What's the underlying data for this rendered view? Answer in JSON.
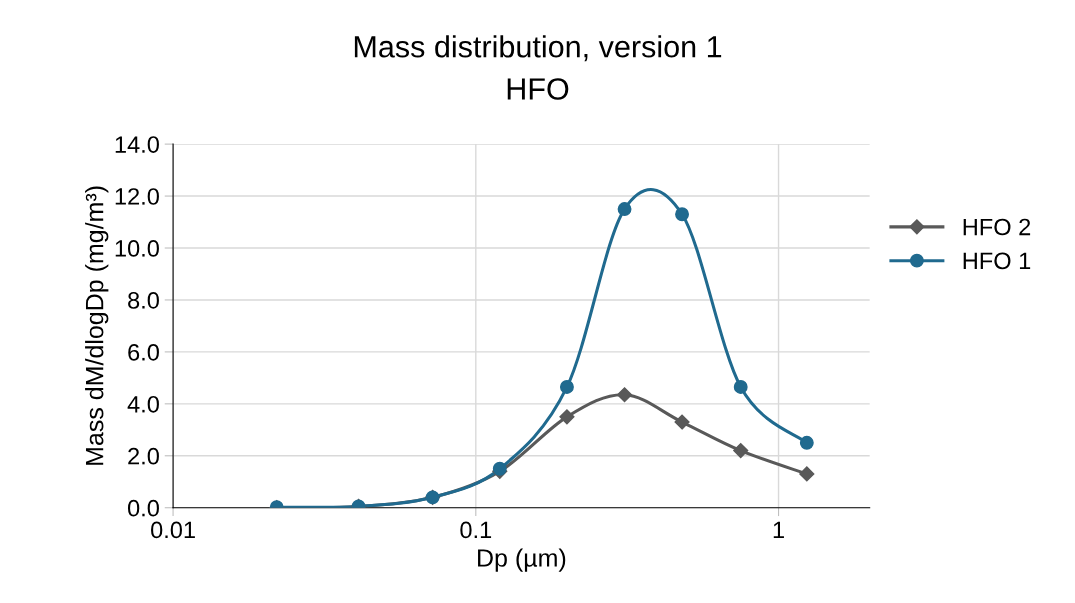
{
  "chart_data": {
    "type": "line",
    "title": "Mass distribution, version 1",
    "subtitle": "HFO",
    "xlabel": "Dp (µm)",
    "ylabel": "Mass dM/dlogDp (mg/m³)",
    "x": [
      0.022,
      0.041,
      0.072,
      0.12,
      0.2,
      0.31,
      0.48,
      0.75,
      1.24
    ],
    "series": [
      {
        "name": "HFO 2",
        "color": "#595959",
        "marker": "diamond",
        "values": [
          0.0,
          0.05,
          0.4,
          1.4,
          3.5,
          4.35,
          3.3,
          2.2,
          1.3
        ]
      },
      {
        "name": "HFO 1",
        "color": "#206a8f",
        "marker": "circle",
        "values": [
          0.02,
          0.05,
          0.4,
          1.5,
          4.65,
          11.5,
          11.3,
          4.65,
          2.5
        ]
      }
    ],
    "log": "x",
    "xlim": [
      0.01,
      2
    ],
    "xticks": [
      0.01,
      0.1,
      1
    ],
    "ylim": [
      0,
      14
    ],
    "yticks": [
      {
        "value": 0,
        "label": "0.0"
      },
      {
        "value": 2,
        "label": "2.0"
      },
      {
        "value": 4,
        "label": "4.0"
      },
      {
        "value": 6,
        "label": "6.0"
      },
      {
        "value": 8,
        "label": "8.0"
      },
      {
        "value": 10,
        "label": "10.0"
      },
      {
        "value": 12,
        "label": "12.0"
      },
      {
        "value": 14,
        "label": "14.0"
      }
    ],
    "grid": true,
    "legend": "right",
    "line_style": "solid"
  }
}
